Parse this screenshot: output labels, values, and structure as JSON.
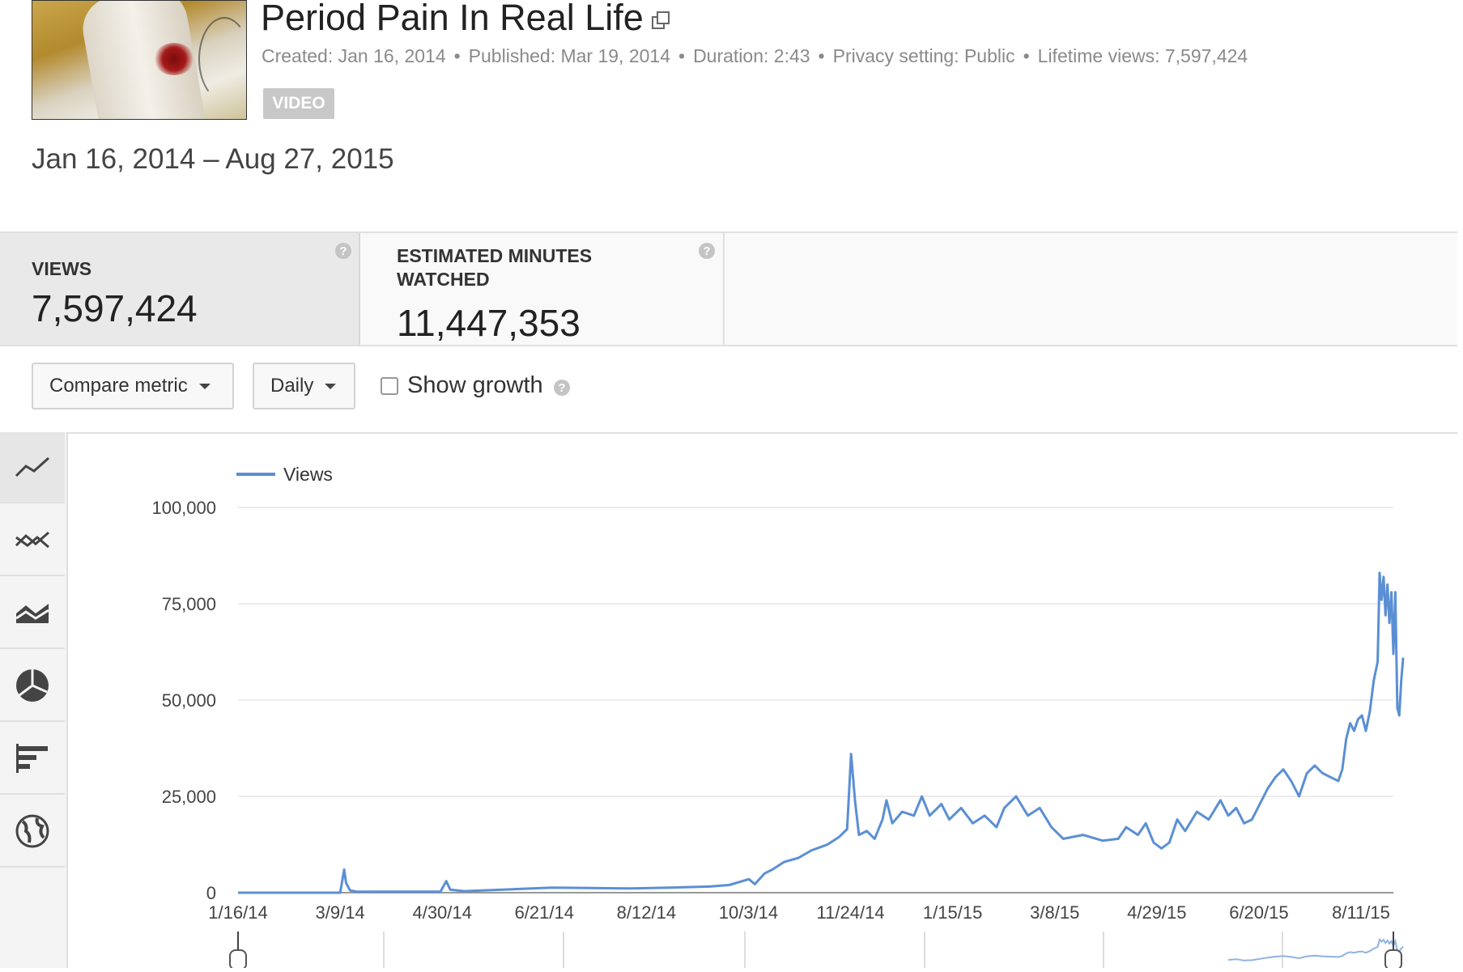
{
  "video": {
    "title": "Period Pain In Real Life",
    "created": "Created: Jan 16, 2014",
    "published": "Published: Mar 19, 2014",
    "duration": "Duration: 2:43",
    "privacy": "Privacy setting: Public",
    "lifetime_views": "Lifetime views: 7,597,424",
    "badge": "VIDEO"
  },
  "date_range": "Jan 16, 2014 – Aug 27, 2015",
  "metrics": [
    {
      "label": "VIEWS",
      "value": "7,597,424"
    },
    {
      "label": "ESTIMATED MINUTES WATCHED",
      "value": "11,447,353"
    }
  ],
  "controls": {
    "compare_metric": "Compare metric",
    "interval": "Daily",
    "show_growth": "Show growth",
    "show_growth_checked": false
  },
  "sidebar_icons": [
    "line-chart-icon",
    "multi-line-chart-icon",
    "stacked-area-chart-icon",
    "pie-chart-icon",
    "bar-chart-icon",
    "map-globe-icon"
  ],
  "chart_data": {
    "type": "line",
    "series": [
      {
        "name": "Views",
        "color": "#5b8fd4"
      }
    ],
    "ylim": [
      0,
      100000
    ],
    "yticks": [
      "0",
      "25,000",
      "50,000",
      "75,000",
      "100,000"
    ],
    "xticks": [
      "1/16/14",
      "3/9/14",
      "4/30/14",
      "6/21/14",
      "8/12/14",
      "10/3/14",
      "11/24/14",
      "1/15/15",
      "3/8/15",
      "4/29/15",
      "6/20/15",
      "8/11/15"
    ],
    "x_day_span": 588,
    "points": [
      [
        0,
        0
      ],
      [
        52,
        0
      ],
      [
        54,
        6000
      ],
      [
        55,
        2500
      ],
      [
        57,
        600
      ],
      [
        60,
        300
      ],
      [
        80,
        250
      ],
      [
        103,
        250
      ],
      [
        106,
        3000
      ],
      [
        108,
        800
      ],
      [
        115,
        400
      ],
      [
        140,
        900
      ],
      [
        160,
        1300
      ],
      [
        180,
        1200
      ],
      [
        200,
        1100
      ],
      [
        220,
        1300
      ],
      [
        240,
        1600
      ],
      [
        250,
        2000
      ],
      [
        260,
        3500
      ],
      [
        263,
        2200
      ],
      [
        268,
        5000
      ],
      [
        272,
        6000
      ],
      [
        278,
        8000
      ],
      [
        285,
        9000
      ],
      [
        292,
        11000
      ],
      [
        300,
        12500
      ],
      [
        306,
        14500
      ],
      [
        310,
        16500
      ],
      [
        312,
        36000
      ],
      [
        314,
        24000
      ],
      [
        316,
        15000
      ],
      [
        320,
        16000
      ],
      [
        324,
        14000
      ],
      [
        328,
        19000
      ],
      [
        330,
        24000
      ],
      [
        333,
        18000
      ],
      [
        338,
        21000
      ],
      [
        344,
        20000
      ],
      [
        348,
        25000
      ],
      [
        352,
        20000
      ],
      [
        358,
        23000
      ],
      [
        362,
        19000
      ],
      [
        368,
        22000
      ],
      [
        374,
        18000
      ],
      [
        380,
        20000
      ],
      [
        386,
        17000
      ],
      [
        390,
        22000
      ],
      [
        396,
        25000
      ],
      [
        402,
        20000
      ],
      [
        408,
        22000
      ],
      [
        414,
        17000
      ],
      [
        420,
        14000
      ],
      [
        430,
        15000
      ],
      [
        440,
        13500
      ],
      [
        448,
        14000
      ],
      [
        452,
        17000
      ],
      [
        458,
        15000
      ],
      [
        462,
        18000
      ],
      [
        466,
        13000
      ],
      [
        470,
        11500
      ],
      [
        474,
        13000
      ],
      [
        478,
        19000
      ],
      [
        482,
        16000
      ],
      [
        488,
        21000
      ],
      [
        494,
        19000
      ],
      [
        500,
        24000
      ],
      [
        504,
        20000
      ],
      [
        508,
        22000
      ],
      [
        512,
        18000
      ],
      [
        516,
        19000
      ],
      [
        520,
        23000
      ],
      [
        524,
        27000
      ],
      [
        528,
        30000
      ],
      [
        532,
        32000
      ],
      [
        536,
        29000
      ],
      [
        540,
        25000
      ],
      [
        544,
        31000
      ],
      [
        548,
        33000
      ],
      [
        552,
        31000
      ],
      [
        556,
        30000
      ],
      [
        560,
        29000
      ],
      [
        562,
        32000
      ],
      [
        564,
        40000
      ],
      [
        566,
        44000
      ],
      [
        568,
        42000
      ],
      [
        570,
        45000
      ],
      [
        572,
        46000
      ],
      [
        574,
        42000
      ],
      [
        576,
        47000
      ],
      [
        578,
        55000
      ],
      [
        580,
        60000
      ],
      [
        581,
        83000
      ],
      [
        582,
        76000
      ],
      [
        583,
        82000
      ],
      [
        584,
        72000
      ],
      [
        585,
        80000
      ],
      [
        586,
        70000
      ],
      [
        587,
        78000
      ],
      [
        588,
        62000
      ],
      [
        589,
        78000
      ],
      [
        590,
        48000
      ],
      [
        591,
        46000
      ],
      [
        592,
        55000
      ],
      [
        593,
        61000
      ]
    ]
  }
}
